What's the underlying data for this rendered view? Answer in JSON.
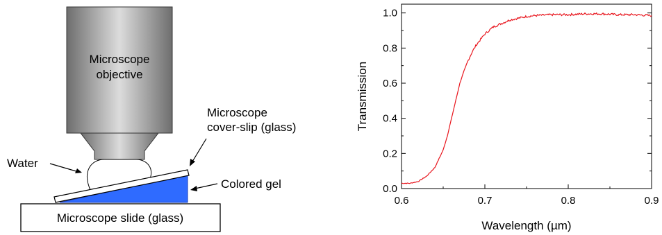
{
  "diagram": {
    "objective_label_line1": "Microscope",
    "objective_label_line2": "objective",
    "coverslip_label_line1": "Microscope",
    "coverslip_label_line2": "cover-slip (glass)",
    "water_label": "Water",
    "gel_label": "Colored gel",
    "slide_label": "Microscope slide (glass)",
    "colors": {
      "gel": "#2f6bff",
      "objective_dark": "#6e6e6e",
      "objective_light": "#dcdcdc"
    }
  },
  "chart_data": {
    "type": "line",
    "title": "",
    "xlabel": "Wavelength (µm)",
    "ylabel": "Transmission",
    "xlim": [
      0.6,
      0.9
    ],
    "ylim": [
      0.0,
      1.05
    ],
    "x_ticks": [
      "0.6",
      "0.7",
      "0.8",
      "0.9"
    ],
    "y_ticks": [
      "0.0",
      "0.2",
      "0.4",
      "0.6",
      "0.8",
      "1.0"
    ],
    "x_tick_values": [
      0.6,
      0.7,
      0.8,
      0.9
    ],
    "y_tick_values": [
      0.0,
      0.2,
      0.4,
      0.6,
      0.8,
      1.0
    ],
    "grid": false,
    "series": [
      {
        "color": "#e8141c",
        "x": [
          0.6,
          0.61,
          0.62,
          0.63,
          0.64,
          0.65,
          0.655,
          0.66,
          0.665,
          0.67,
          0.675,
          0.68,
          0.685,
          0.69,
          0.695,
          0.7,
          0.705,
          0.71,
          0.72,
          0.73,
          0.74,
          0.75,
          0.76,
          0.78,
          0.8,
          0.82,
          0.84,
          0.86,
          0.88,
          0.9
        ],
        "y": [
          0.03,
          0.03,
          0.04,
          0.07,
          0.12,
          0.22,
          0.3,
          0.4,
          0.5,
          0.6,
          0.67,
          0.73,
          0.78,
          0.82,
          0.85,
          0.88,
          0.9,
          0.92,
          0.94,
          0.96,
          0.97,
          0.98,
          0.985,
          0.99,
          0.99,
          0.995,
          0.995,
          0.99,
          0.99,
          0.985
        ]
      }
    ]
  }
}
